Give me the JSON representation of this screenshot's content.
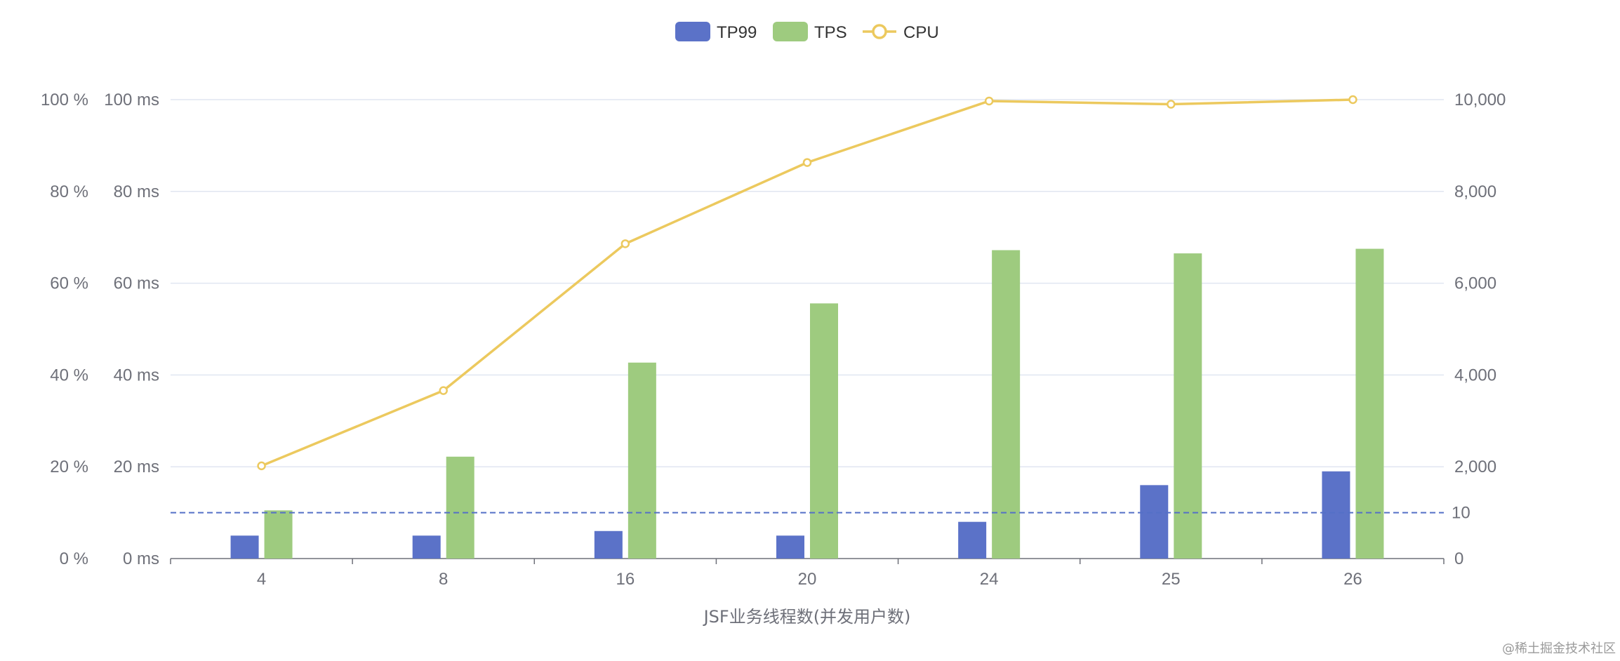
{
  "chart_data": {
    "type": "bar",
    "categories": [
      "4",
      "8",
      "16",
      "20",
      "24",
      "25",
      "26"
    ],
    "xlabel": "JSF业务线程数(并发用户数)",
    "series": [
      {
        "name": "TP99",
        "type": "bar",
        "axis": "ms",
        "values": [
          5,
          5,
          6,
          5,
          8,
          16,
          19
        ]
      },
      {
        "name": "TPS",
        "type": "bar",
        "axis": "tps",
        "values": [
          1050,
          2220,
          4270,
          5560,
          6720,
          6650,
          6750
        ]
      },
      {
        "name": "CPU",
        "type": "line",
        "axis": "percent",
        "values": [
          20.2,
          36.6,
          68.6,
          86.3,
          99.7,
          99.0,
          100
        ]
      }
    ],
    "axes": {
      "left_percent": {
        "range": [
          0,
          100
        ],
        "ticks": [
          "0 %",
          "20 %",
          "40 %",
          "60 %",
          "80 %",
          "100 %"
        ]
      },
      "left_ms": {
        "range": [
          0,
          100
        ],
        "ticks": [
          "0 ms",
          "20 ms",
          "40 ms",
          "60 ms",
          "80 ms",
          "100 ms"
        ]
      },
      "right_tps": {
        "range": [
          0,
          10000
        ],
        "ticks": [
          "0",
          "2,000",
          "4,000",
          "6,000",
          "8,000",
          "10,000"
        ]
      }
    },
    "mark_line": {
      "value": 10,
      "label": "10",
      "axis": "ms",
      "style": "dashed"
    },
    "legend": {
      "position": "top-center",
      "items": [
        "TP99",
        "TPS",
        "CPU"
      ]
    },
    "grid": true,
    "colors": {
      "TP99": "#5b72c8",
      "TPS": "#9ecb7f",
      "CPU": "#ecc95e",
      "mark_line": "#5470c6"
    }
  },
  "watermark": "@稀土掘金技术社区"
}
